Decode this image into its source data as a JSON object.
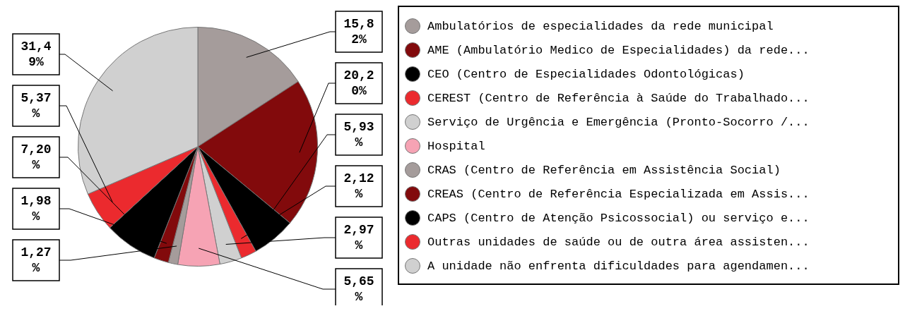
{
  "chart_data": {
    "type": "pie",
    "categories": [
      "Ambulatórios de especialidades da rede municipal",
      "AME (Ambulatório Medico de Especialidades) da rede...",
      "CEO (Centro de Especialidades Odontológicas)",
      "CEREST (Centro de Referência à Saúde do Trabalhado...",
      "Serviço de Urgência e Emergência (Pronto-Socorro /...",
      "Hospital",
      "CRAS (Centro de Referência em Assistência Social)",
      "CREAS (Centro de Referência Especializada em Assis...",
      "CAPS (Centro de Atenção Psicossocial) ou serviço e...",
      "Outras unidades de saúde ou de outra área assisten...",
      "A unidade não enfrenta dificuldades para agendamen..."
    ],
    "values": [
      15.82,
      20.2,
      5.93,
      2.12,
      2.97,
      5.65,
      1.27,
      1.98,
      7.2,
      5.37,
      31.49
    ],
    "value_labels": [
      "15,82%",
      "20,20%",
      "5,93%",
      "2,12%",
      "2,97%",
      "5,65%",
      "1,27%",
      "1,98%",
      "7,20%",
      "5,37%",
      "31,49%"
    ],
    "colors": [
      "#a59c9b",
      "#820a0c",
      "#000000",
      "#eb2a2e",
      "#d0d0d0",
      "#f6a3b4",
      "#a59c9b",
      "#820a0c",
      "#000000",
      "#eb2a2e",
      "#d0d0d0"
    ],
    "legend": "right"
  }
}
